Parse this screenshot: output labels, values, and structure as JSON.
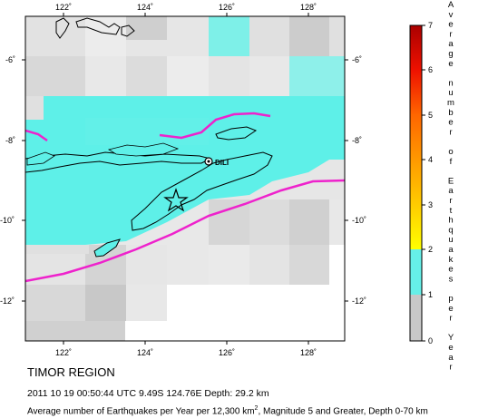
{
  "map": {
    "x_ticks": [
      "122˚",
      "124˚",
      "126˚",
      "128˚"
    ],
    "y_ticks": [
      "-6˚",
      "-8˚",
      "-10˚",
      "-12˚"
    ],
    "city_label": "DILI",
    "colors": {
      "ocean_low": "#5ef0e8",
      "grey_light": "#e0e0e0",
      "grey_mid": "#cccccc",
      "grey_dark": "#bdbdbd",
      "trench": "#ee22cc",
      "land_fill": "#5ef0e8",
      "coast": "#000000"
    }
  },
  "legend": {
    "ticks": [
      "0",
      "1",
      "2",
      "3",
      "4",
      "5",
      "6",
      "7"
    ],
    "title_chars": [
      "A",
      "v",
      "e",
      "r",
      "a",
      "g",
      "e",
      "",
      "n",
      "u",
      "m",
      "b",
      "e",
      "r",
      "",
      "o",
      "f",
      "",
      "E",
      "a",
      "r",
      "t",
      "h",
      "q",
      "u",
      "a",
      "k",
      "e",
      "s",
      "",
      "p",
      "e",
      "r",
      "",
      "Y",
      "e",
      "a",
      "r"
    ],
    "colors": [
      "#c8c8c8",
      "#66f0e8",
      "#ffff00",
      "#ffcc00",
      "#ff9900",
      "#ff6600",
      "#ee1100",
      "#aa0000"
    ]
  },
  "caption": {
    "region": "TIMOR REGION",
    "event": "2011 10 19 00:50:44 UTC 9.49S 124.76E Depth: 29.2 km",
    "avg_prefix": "Average number of Earthquakes per Year per 12,300 km",
    "avg_sup": "2",
    "avg_suffix": ", Magnitude 5 and Greater, Depth 0-70 km"
  }
}
